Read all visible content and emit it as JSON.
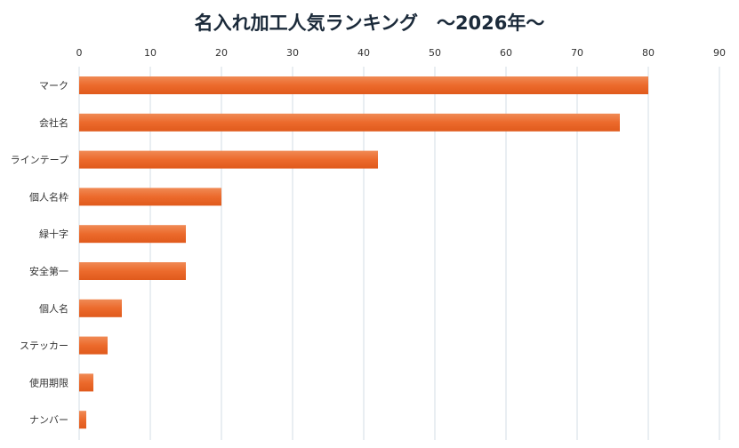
{
  "chart_data": {
    "type": "bar",
    "orientation": "horizontal",
    "title": "名入れ加工人気ランキング　～2026年～",
    "categories": [
      "マーク",
      "会社名",
      "ラインテープ",
      "個人名枠",
      "緑十字",
      "安全第一",
      "個人名",
      "ステッカー",
      "使用期限",
      "ナンバー"
    ],
    "values": [
      80,
      76,
      42,
      20,
      15,
      15,
      6,
      4,
      2,
      1
    ],
    "xlim": [
      0,
      90
    ],
    "xticks": [
      0,
      10,
      20,
      30,
      40,
      50,
      60,
      70,
      80,
      90
    ],
    "xaxis_position": "top",
    "grid": true,
    "bar_color": "#ec6a2c",
    "xlabel": "",
    "ylabel": ""
  }
}
